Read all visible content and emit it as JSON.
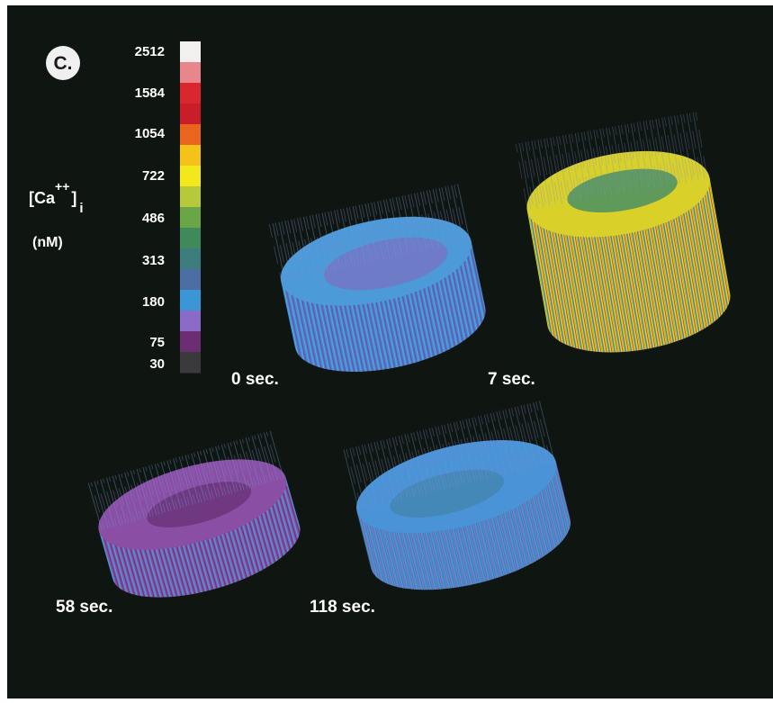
{
  "panel_label": "C.",
  "colorbar": {
    "title": {
      "main": "[Ca",
      "superscript": "++",
      "bracket": "]",
      "subscript": "i",
      "unit": "(nM)"
    },
    "labels": [
      "2512",
      "1584",
      "1054",
      "722",
      "486",
      "313",
      "180",
      "75",
      "30"
    ],
    "colors": [
      "#f2f0ee",
      "#e8868c",
      "#d9262f",
      "#c91e2a",
      "#e8641f",
      "#f5c21a",
      "#f2e81c",
      "#b7c83a",
      "#6aa546",
      "#3f8a5a",
      "#3d7c7d",
      "#4a6ea3",
      "#3b96d8",
      "#8a6cc8",
      "#6b2e72",
      "#3a3a3c"
    ]
  },
  "panels": [
    {
      "label": "0 sec."
    },
    {
      "label": "7 sec."
    },
    {
      "label": "58 sec."
    },
    {
      "label": "118 sec."
    }
  ]
}
